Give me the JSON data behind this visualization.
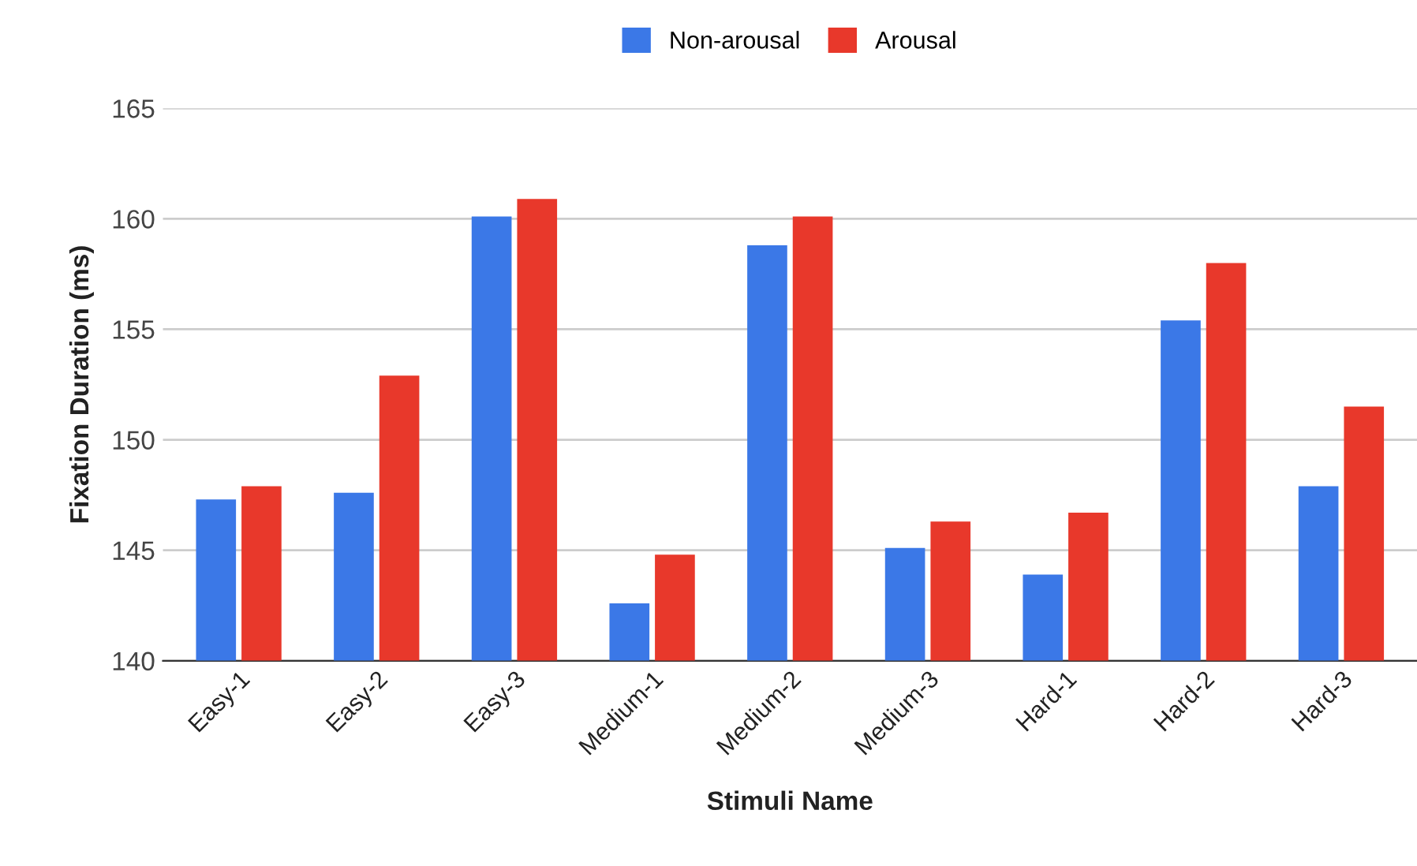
{
  "chart_data": {
    "type": "bar",
    "xlabel": "Stimuli Name",
    "ylabel": "Fixation Duration (ms)",
    "categories": [
      "Easy-1",
      "Easy-2",
      "Easy-3",
      "Medium-1",
      "Medium-2",
      "Medium-3",
      "Hard-1",
      "Hard-2",
      "Hard-3"
    ],
    "series": [
      {
        "name": "Non-arousal",
        "color": "#3b78e7",
        "values": [
          147.3,
          147.6,
          160.1,
          142.6,
          158.8,
          145.1,
          143.9,
          155.4,
          147.9
        ]
      },
      {
        "name": "Arousal",
        "color": "#e8382b",
        "values": [
          147.9,
          152.9,
          160.9,
          144.8,
          160.1,
          146.3,
          146.7,
          158.0,
          151.5
        ]
      }
    ],
    "ylim": [
      140,
      165
    ],
    "yticks": [
      140,
      145,
      150,
      155,
      160,
      165
    ],
    "grid": "y",
    "legend": "top"
  }
}
